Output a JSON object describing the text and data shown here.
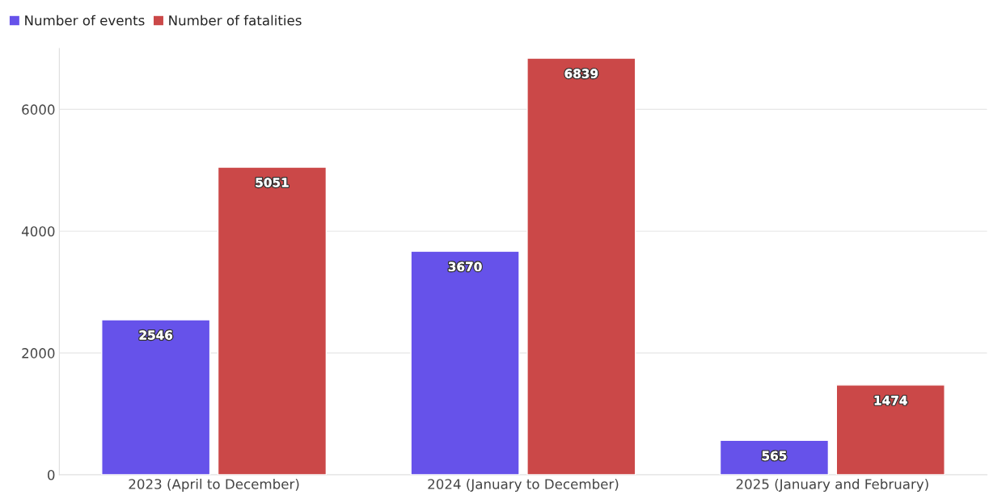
{
  "chart_data": {
    "type": "bar",
    "categories": [
      "2023 (April to December)",
      "2024 (January to December)",
      "2025 (January and February)"
    ],
    "series": [
      {
        "name": "Number of events",
        "color": "#6652ea",
        "values": [
          2546,
          3670,
          565
        ]
      },
      {
        "name": "Number of fatalities",
        "color": "#cb4848",
        "values": [
          5051,
          6839,
          1474
        ]
      }
    ],
    "ylim": [
      0,
      7000
    ],
    "yticks": [
      0,
      2000,
      4000,
      6000
    ],
    "grid": "y",
    "legend": "top left",
    "data_labels": true
  }
}
